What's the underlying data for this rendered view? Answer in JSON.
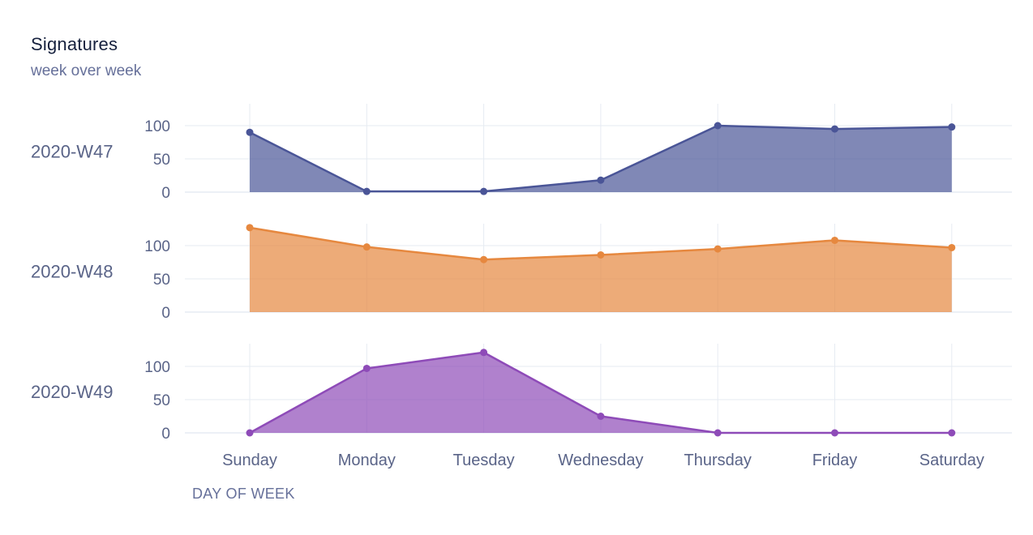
{
  "header": {
    "title": "Signatures",
    "subtitle": "week over week"
  },
  "chart_data": {
    "type": "area",
    "title": "Signatures",
    "subtitle": "week over week",
    "xlabel": "DAY OF WEEK",
    "x": [
      "Sunday",
      "Monday",
      "Tuesday",
      "Wednesday",
      "Thursday",
      "Friday",
      "Saturday"
    ],
    "yticks": [
      0,
      50,
      100
    ],
    "grid": true,
    "legend": "none",
    "series": [
      {
        "name": "2020-W47",
        "color": "#4a5597",
        "values": [
          90,
          1,
          1,
          18,
          100,
          95,
          98
        ]
      },
      {
        "name": "2020-W48",
        "color": "#e6883f",
        "values": [
          127,
          98,
          79,
          86,
          95,
          108,
          97
        ]
      },
      {
        "name": "2020-W49",
        "color": "#8e4bb8",
        "values": [
          0,
          97,
          121,
          25,
          0,
          0,
          0
        ]
      }
    ]
  }
}
